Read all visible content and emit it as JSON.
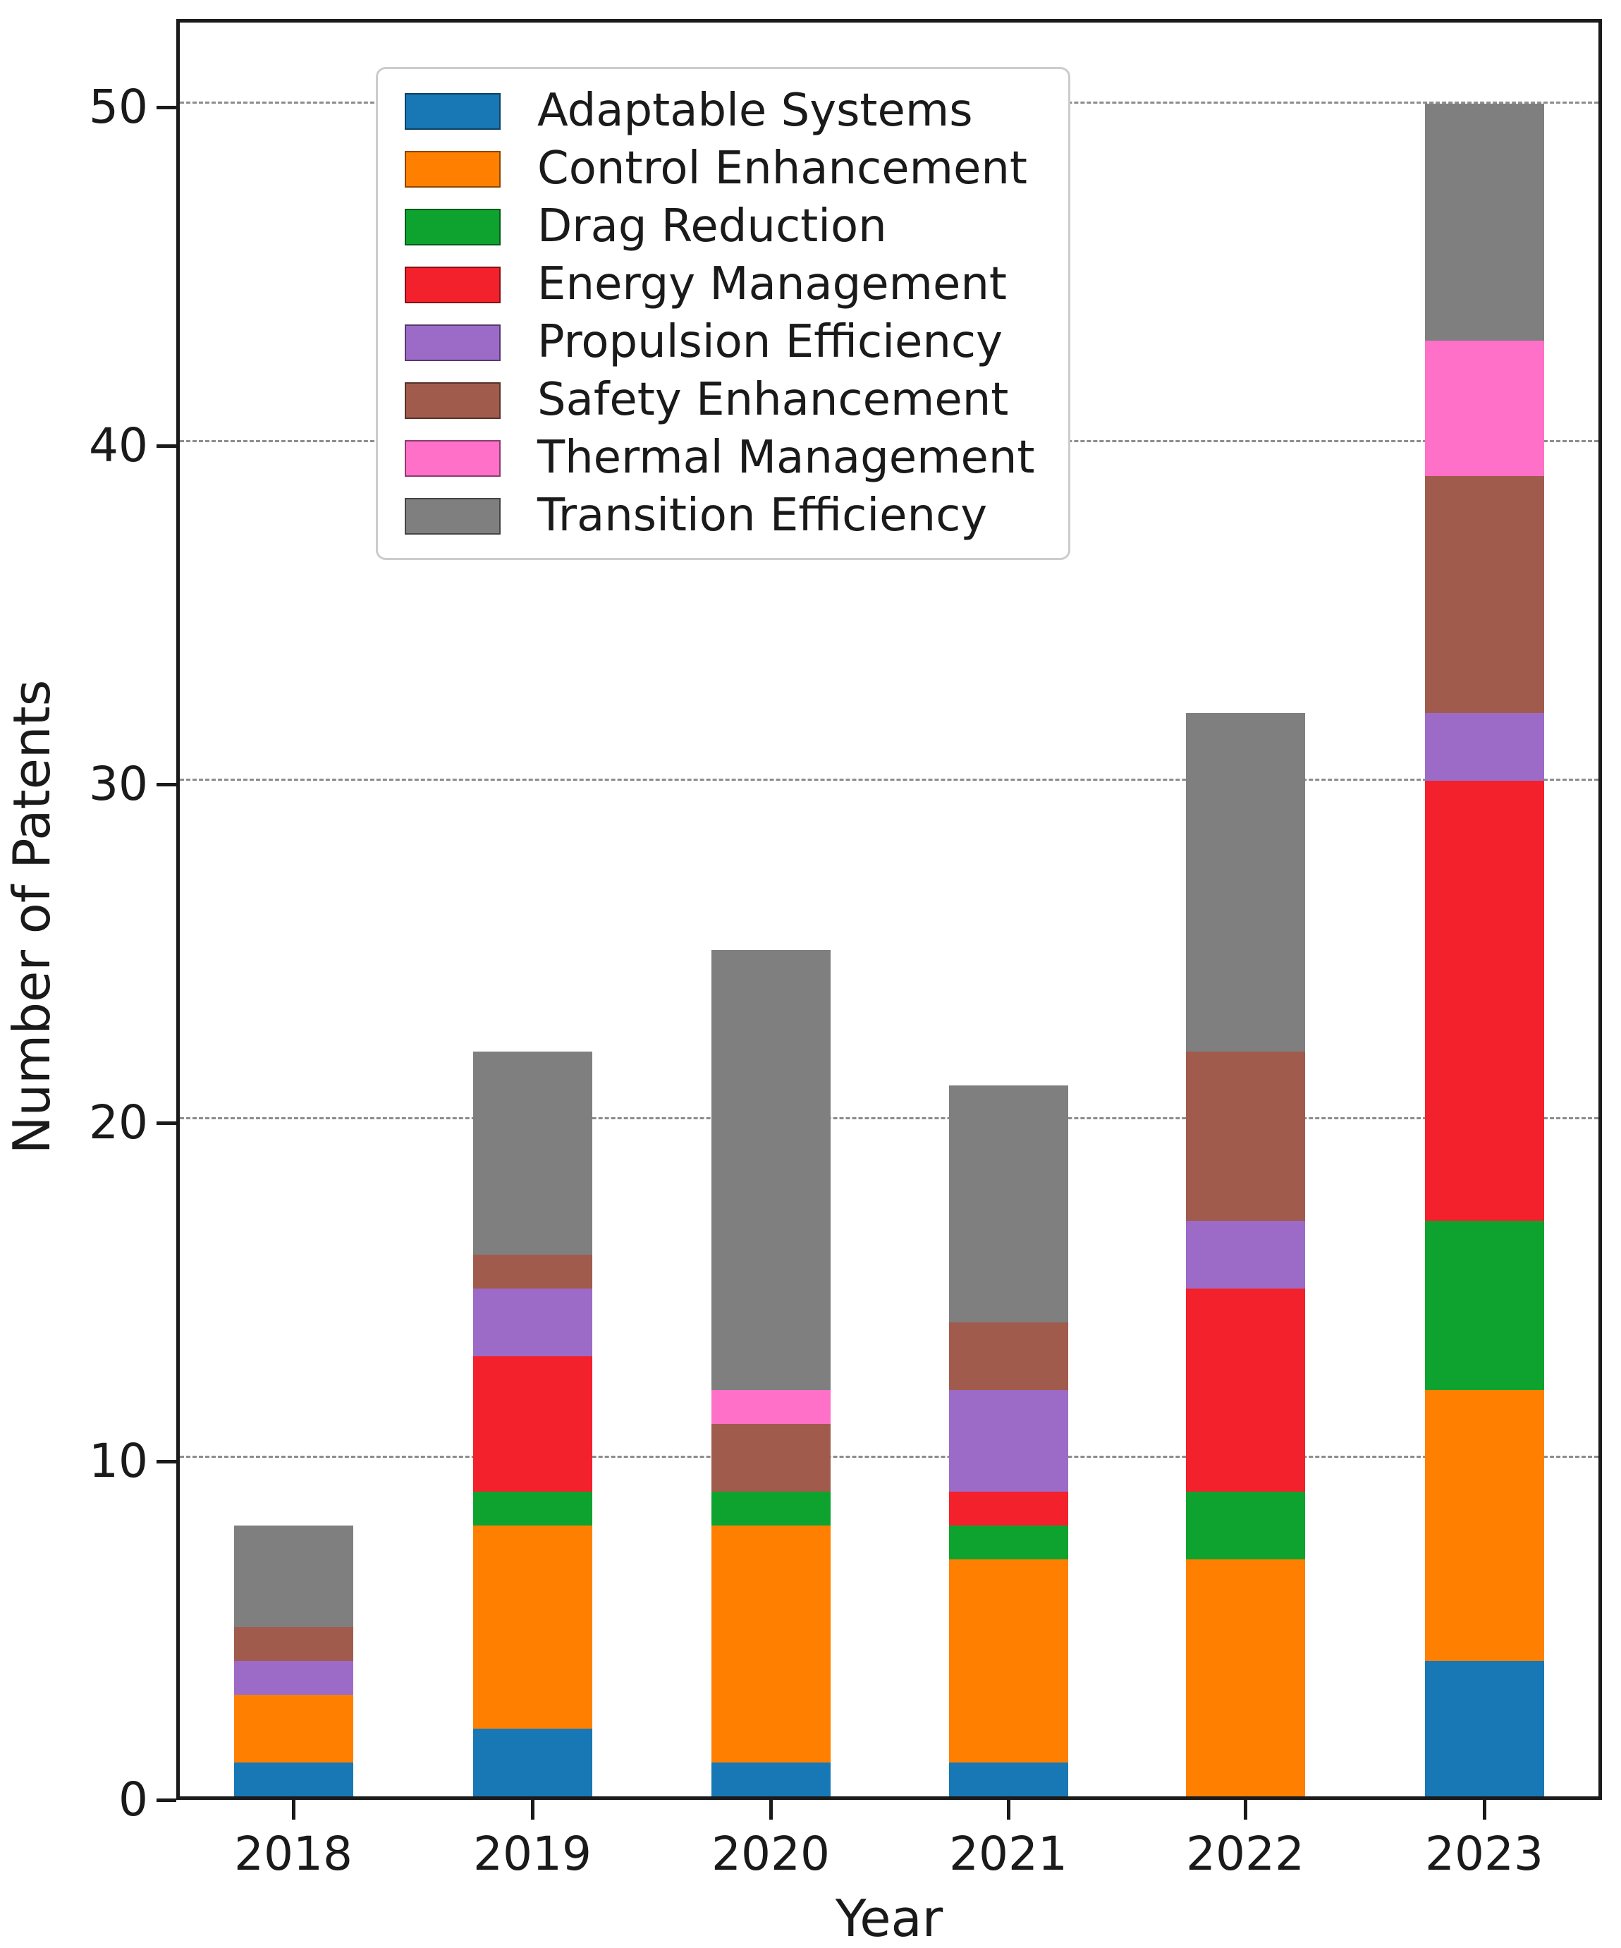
{
  "chart_data": {
    "type": "bar",
    "stacked": true,
    "title": "",
    "xlabel": "Year",
    "ylabel": "Number of Patents",
    "categories": [
      "2018",
      "2019",
      "2020",
      "2021",
      "2022",
      "2023"
    ],
    "series": [
      {
        "name": "Adaptable Systems",
        "color": "#1778b5",
        "values": [
          1,
          2,
          1,
          1,
          0,
          4
        ]
      },
      {
        "name": "Control Enhancement",
        "color": "#ff8000",
        "values": [
          2,
          6,
          7,
          6,
          7,
          8
        ]
      },
      {
        "name": "Drag Reduction",
        "color": "#0ea32e",
        "values": [
          0,
          1,
          1,
          1,
          2,
          5
        ]
      },
      {
        "name": "Energy Management",
        "color": "#f2212b",
        "values": [
          0,
          4,
          0,
          1,
          6,
          13
        ]
      },
      {
        "name": "Propulsion Efficiency",
        "color": "#9c6bc8",
        "values": [
          1,
          2,
          0,
          3,
          2,
          2
        ]
      },
      {
        "name": "Safety Enhancement",
        "color": "#a15b4d",
        "values": [
          1,
          1,
          2,
          2,
          5,
          7
        ]
      },
      {
        "name": "Thermal Management",
        "color": "#ff70c8",
        "values": [
          0,
          0,
          1,
          0,
          0,
          4
        ]
      },
      {
        "name": "Transition Efficiency",
        "color": "#7f7f7f",
        "values": [
          3,
          6,
          13,
          7,
          10,
          7
        ]
      }
    ],
    "totals": [
      8,
      22,
      25,
      21,
      32,
      50
    ],
    "y_ticks": [
      0,
      10,
      20,
      30,
      40,
      50
    ],
    "ylim": [
      0,
      52.6
    ],
    "grid": "horizontal dashed at each y tick",
    "legend_position": "upper left"
  },
  "axes": {
    "x_label": "Year",
    "y_label": "Number of Patents"
  }
}
